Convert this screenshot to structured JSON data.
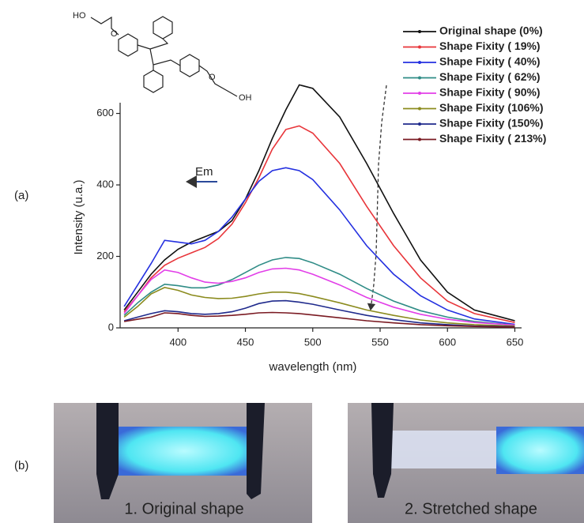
{
  "panel_labels": [
    "(a)",
    "(b)"
  ],
  "molecule_labels": [
    "HO",
    "O",
    "O",
    "OH"
  ],
  "annotation": "Em",
  "photos": [
    "1. Original shape",
    "2. Stretched shape"
  ],
  "chart_data": {
    "type": "line",
    "xlabel": "wavelength (nm)",
    "ylabel": "Intensity (u.a.)",
    "x": [
      360,
      370,
      380,
      390,
      400,
      410,
      420,
      430,
      440,
      450,
      460,
      470,
      480,
      490,
      500,
      520,
      540,
      560,
      580,
      600,
      620,
      650
    ],
    "series": [
      {
        "name": "Original shape (0%)",
        "color": "#111111",
        "values": [
          50,
          100,
          150,
          190,
          220,
          240,
          255,
          270,
          300,
          360,
          440,
          530,
          610,
          680,
          670,
          590,
          460,
          320,
          190,
          100,
          50,
          20
        ]
      },
      {
        "name": "Shape Fixity ( 19%)",
        "color": "#e8353a",
        "values": [
          45,
          90,
          140,
          175,
          195,
          210,
          225,
          250,
          290,
          350,
          420,
          500,
          555,
          565,
          545,
          460,
          340,
          230,
          140,
          75,
          40,
          15
        ]
      },
      {
        "name": "Shape Fixity ( 40%)",
        "color": "#2430e0",
        "values": [
          60,
          120,
          180,
          245,
          240,
          235,
          245,
          270,
          310,
          360,
          410,
          440,
          448,
          440,
          415,
          330,
          230,
          150,
          90,
          50,
          25,
          10
        ]
      },
      {
        "name": "Shape Fixity ( 62%)",
        "color": "#2f8c86",
        "values": [
          35,
          70,
          100,
          122,
          118,
          112,
          112,
          120,
          135,
          155,
          175,
          190,
          197,
          194,
          182,
          150,
          110,
          75,
          48,
          30,
          18,
          8
        ]
      },
      {
        "name": "Shape Fixity ( 90%)",
        "color": "#e23ee8",
        "values": [
          40,
          90,
          135,
          162,
          155,
          140,
          128,
          125,
          130,
          140,
          155,
          165,
          167,
          162,
          150,
          120,
          85,
          58,
          38,
          24,
          15,
          8
        ]
      },
      {
        "name": "Shape Fixity (106%)",
        "color": "#8b8b1e",
        "values": [
          30,
          60,
          95,
          113,
          105,
          92,
          85,
          82,
          83,
          88,
          95,
          100,
          100,
          96,
          88,
          70,
          50,
          35,
          22,
          14,
          9,
          5
        ]
      },
      {
        "name": "Shape Fixity (150%)",
        "color": "#1f2a8c",
        "values": [
          20,
          30,
          40,
          48,
          45,
          40,
          38,
          40,
          45,
          55,
          68,
          75,
          76,
          72,
          66,
          50,
          35,
          23,
          14,
          9,
          5,
          3
        ]
      },
      {
        "name": "Shape Fixity ( 213%)",
        "color": "#7a1a22",
        "values": [
          18,
          24,
          30,
          42,
          40,
          35,
          32,
          33,
          35,
          38,
          42,
          43,
          42,
          40,
          36,
          28,
          20,
          14,
          9,
          6,
          4,
          2
        ]
      }
    ],
    "xlim": [
      357,
      655
    ],
    "ylim": [
      0,
      630
    ],
    "xticks": [
      400,
      450,
      500,
      550,
      600,
      650
    ],
    "yticks": [
      0,
      200,
      400,
      600
    ]
  }
}
